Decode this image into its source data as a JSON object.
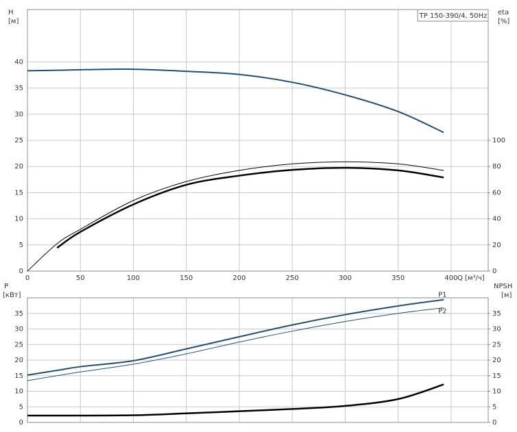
{
  "chart_data": [
    {
      "type": "line",
      "title": "TP 150-390/4, 50Hz",
      "ylabel": "H",
      "yunit": "[м]",
      "y2label": "eta",
      "y2unit": "[%]",
      "xlabel": "Q [м³/ч]",
      "x": [
        0,
        28,
        50,
        100,
        150,
        200,
        250,
        300,
        350,
        393
      ],
      "xlim": [
        0,
        435
      ],
      "xticks": [
        0,
        50,
        100,
        150,
        200,
        250,
        300,
        350,
        400
      ],
      "ylim": [
        0,
        50
      ],
      "yticks": [
        0,
        5,
        10,
        15,
        20,
        25,
        30,
        35,
        40
      ],
      "y2lim": [
        0,
        200
      ],
      "y2ticks": [
        0,
        20,
        40,
        60,
        80,
        100
      ],
      "grid": true,
      "series": [
        {
          "color": "#1f4e79",
          "linewidth": 2,
          "values": [
            38.3,
            38.4,
            38.5,
            38.6,
            38.2,
            37.6,
            36.1,
            33.7,
            30.5,
            26.5
          ]
        },
        {
          "color": "#000000",
          "linewidth": 1,
          "axis": "y2",
          "values": [
            0,
            21,
            32,
            54,
            68.5,
            77,
            82,
            83.6,
            82,
            77
          ]
        },
        {
          "color": "#000000",
          "linewidth": 2.5,
          "axis": "y2",
          "values": [
            null,
            17.8,
            30,
            51,
            66,
            73,
            77.4,
            79,
            77,
            71.6
          ]
        }
      ]
    },
    {
      "type": "line",
      "ylabel": "P",
      "yunit": "[кВт]",
      "y2label": "NPSH",
      "y2unit": "[м]",
      "x": [
        0,
        28,
        50,
        100,
        150,
        200,
        250,
        300,
        350,
        393
      ],
      "xlim": [
        0,
        435
      ],
      "xticks": [
        0,
        50,
        100,
        150,
        200,
        250,
        300,
        350,
        400
      ],
      "show_xtick_labels": false,
      "ylim": [
        0,
        40
      ],
      "yticks": [
        0,
        5,
        10,
        15,
        20,
        25,
        30,
        35
      ],
      "y2lim": [
        0,
        40
      ],
      "y2ticks": [
        0,
        5,
        10,
        15,
        20,
        25,
        30,
        35
      ],
      "grid": true,
      "series": [
        {
          "name": "P1",
          "color": "#1f4e79",
          "linewidth": 2,
          "values": [
            15.2,
            16.7,
            17.9,
            19.8,
            23.6,
            27.5,
            31.3,
            34.6,
            37.4,
            39.4
          ]
        },
        {
          "name": "P2",
          "color": "#1f4e79",
          "linewidth": 1,
          "values": [
            13.4,
            15.0,
            16.2,
            18.7,
            22,
            25.8,
            29.3,
            32.4,
            35,
            36.8
          ]
        },
        {
          "color": "#000000",
          "linewidth": 2.5,
          "axis": "y2",
          "values": [
            2.2,
            2.2,
            2.2,
            2.3,
            2.9,
            3.6,
            4.3,
            5.3,
            7.5,
            12.2
          ]
        }
      ]
    }
  ]
}
